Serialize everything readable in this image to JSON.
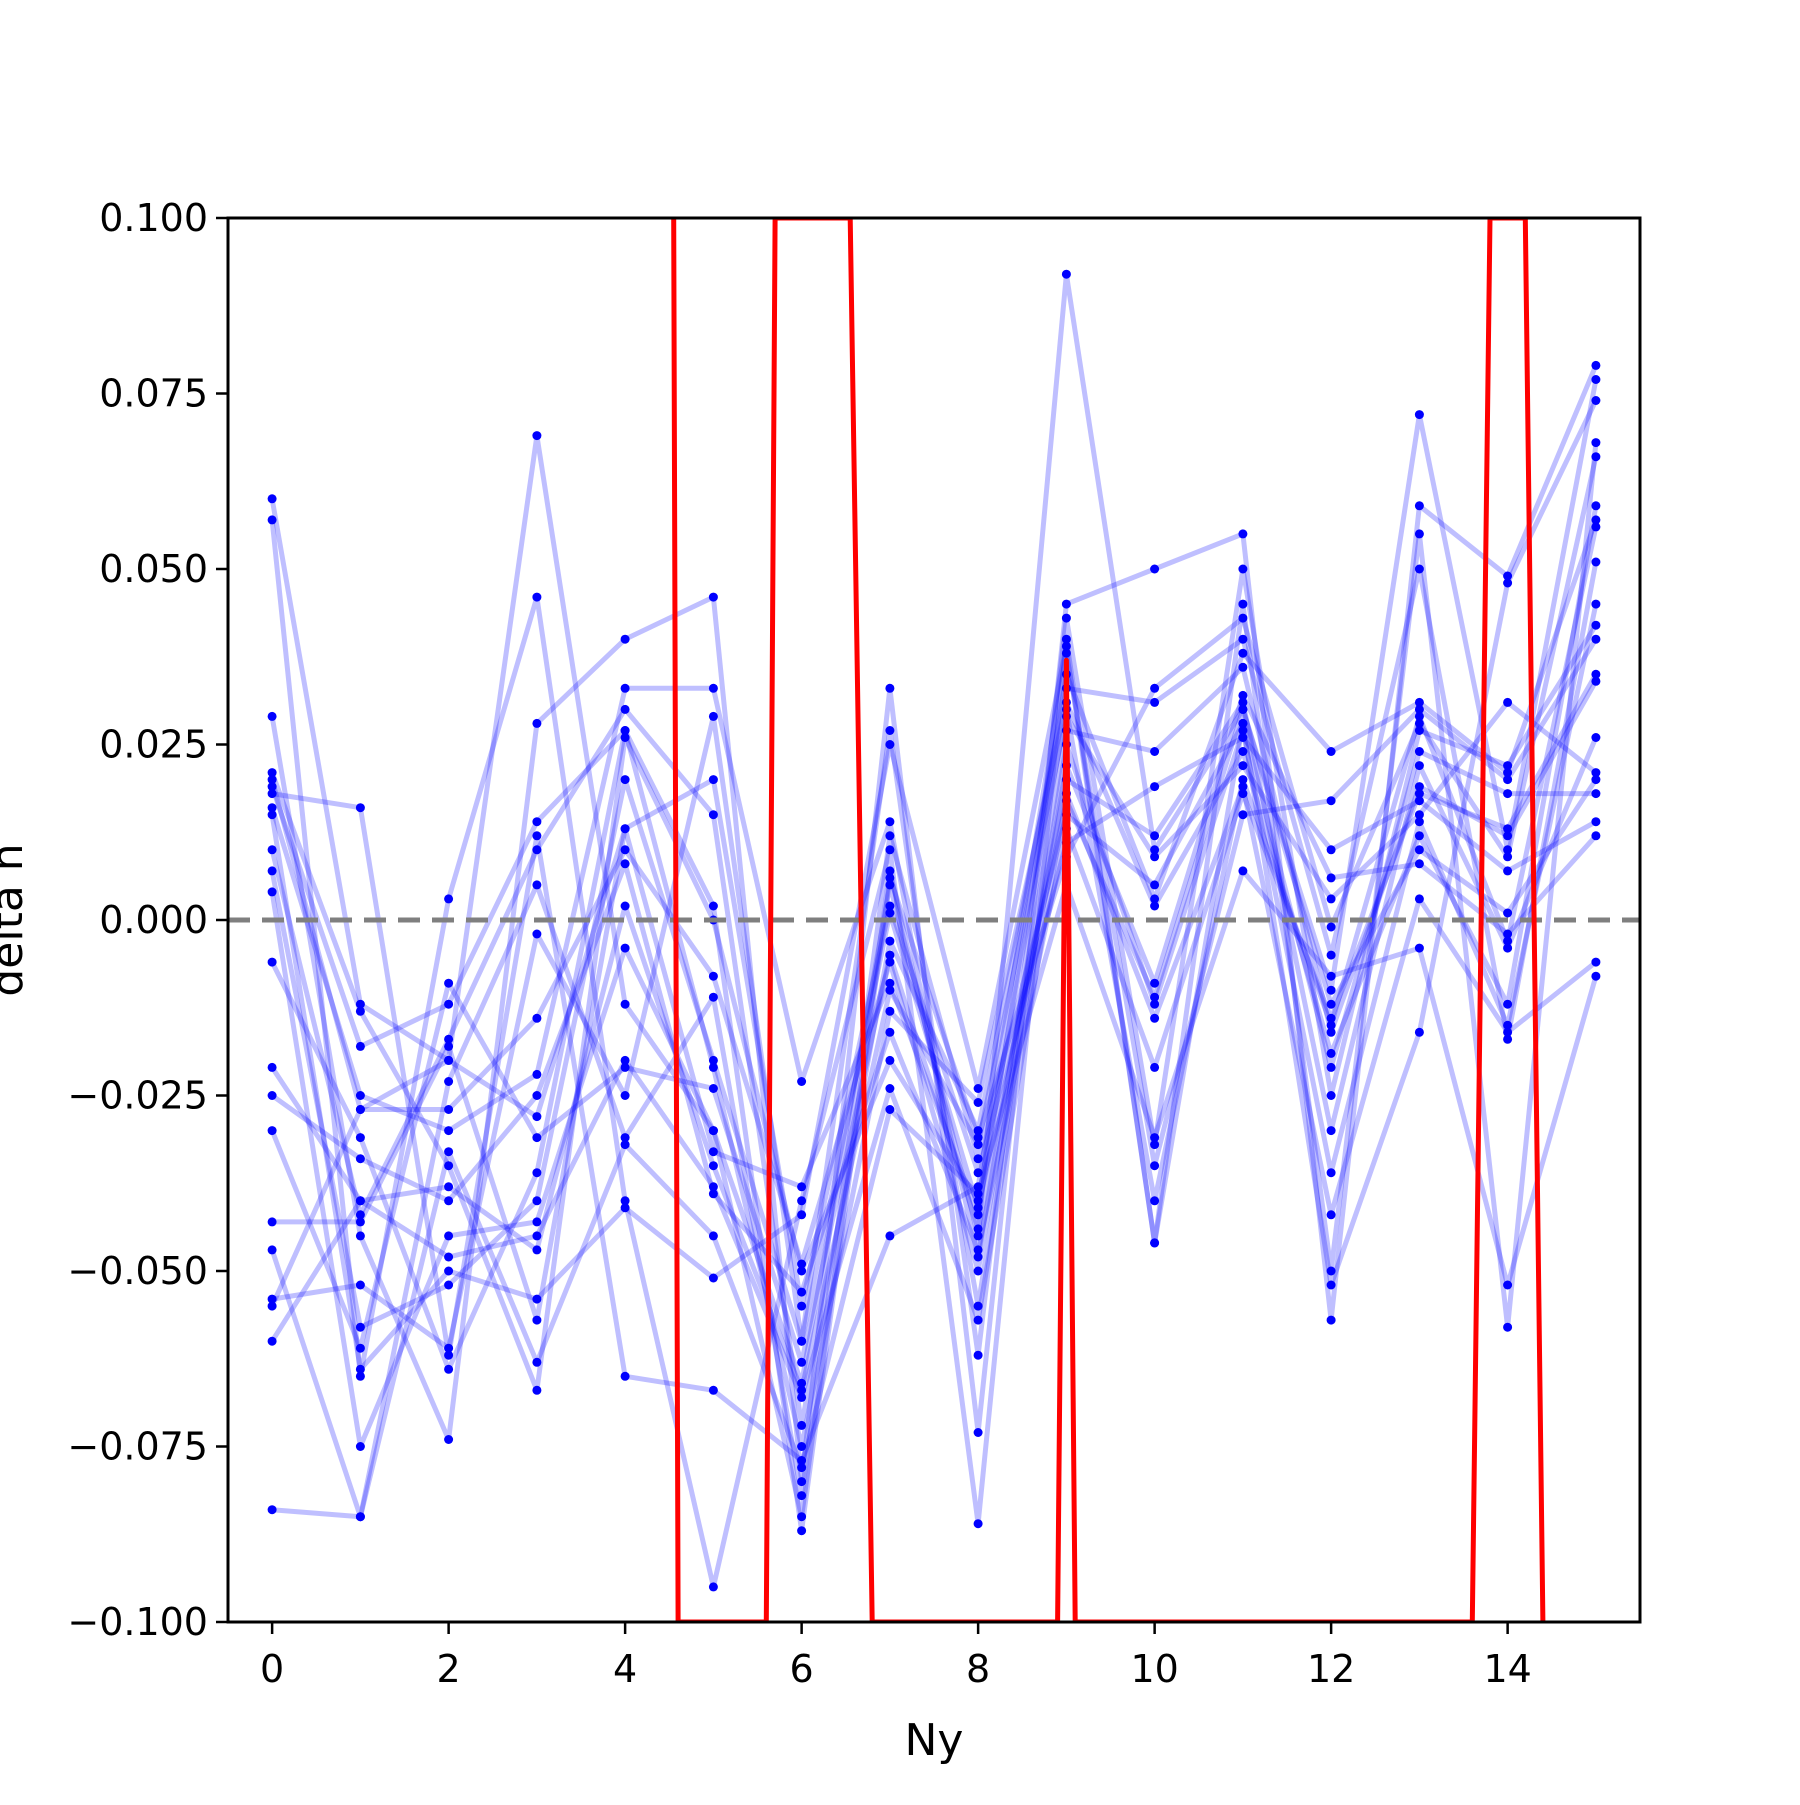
{
  "chart_data": {
    "type": "line",
    "xlabel": "Ny",
    "ylabel": "delta n",
    "xlim": [
      -0.5,
      15.5
    ],
    "ylim": [
      -0.1,
      0.1
    ],
    "x_ticks": [
      0,
      2,
      4,
      6,
      8,
      10,
      12,
      14
    ],
    "x_tick_labels": [
      "0",
      "2",
      "4",
      "6",
      "8",
      "10",
      "12",
      "14"
    ],
    "y_ticks": [
      0.1,
      0.075,
      0.05,
      0.025,
      0.0,
      -0.025,
      -0.05,
      -0.075,
      -0.1
    ],
    "y_tick_labels": [
      "0.100",
      "0.075",
      "0.050",
      "0.025",
      "0.000",
      "−0.025",
      "−0.050",
      "−0.075",
      "−0.100"
    ],
    "grid": false,
    "reference_line": {
      "y": 0.0,
      "style": "dashed",
      "color": "#7f7f7f"
    },
    "colors": {
      "series": "#0000ff",
      "series_alpha": 0.25,
      "highlight": "#ff0000"
    },
    "x": [
      0,
      1,
      2,
      3,
      4,
      5,
      6,
      7,
      8,
      9,
      10,
      11,
      12,
      13,
      14,
      15
    ],
    "series": [
      {
        "values": [
          0.06,
          -0.012,
          -0.02,
          0.069,
          -0.012,
          -0.03,
          -0.066,
          0.005,
          -0.045,
          0.092,
          0.01,
          0.03,
          -0.01,
          0.072,
          0.01,
          0.077
        ]
      },
      {
        "values": [
          0.057,
          -0.065,
          0.003,
          0.046,
          -0.04,
          -0.095,
          -0.04,
          0.01,
          -0.086,
          0.04,
          -0.046,
          0.045,
          -0.05,
          0.055,
          -0.058,
          0.068
        ]
      },
      {
        "values": [
          0.029,
          -0.045,
          -0.074,
          0.028,
          0.04,
          0.046,
          -0.08,
          0.033,
          -0.073,
          0.045,
          0.05,
          0.055,
          -0.057,
          0.059,
          0.049,
          0.079
        ]
      },
      {
        "values": [
          0.021,
          -0.013,
          -0.035,
          -0.067,
          0.026,
          0.0,
          -0.05,
          -0.02,
          -0.04,
          0.03,
          -0.04,
          0.02,
          -0.015,
          0.029,
          -0.003,
          0.056
        ]
      },
      {
        "values": [
          0.018,
          0.016,
          -0.062,
          0.012,
          -0.065,
          -0.067,
          -0.077,
          -0.045,
          -0.038,
          0.038,
          -0.035,
          0.015,
          0.017,
          0.03,
          0.02,
          0.04
        ]
      },
      {
        "values": [
          0.016,
          -0.025,
          -0.03,
          -0.022,
          0.033,
          0.033,
          -0.023,
          0.014,
          -0.055,
          0.025,
          -0.012,
          0.027,
          -0.036,
          0.014,
          -0.015,
          0.045
        ]
      },
      {
        "values": [
          0.01,
          -0.042,
          -0.017,
          0.01,
          0.03,
          0.015,
          -0.072,
          -0.003,
          -0.03,
          0.033,
          0.031,
          0.04,
          -0.005,
          0.05,
          -0.017,
          0.051
        ]
      },
      {
        "values": [
          0.007,
          -0.058,
          -0.052,
          -0.04,
          0.02,
          -0.02,
          -0.06,
          0.027,
          -0.062,
          0.043,
          -0.032,
          0.05,
          -0.025,
          0.027,
          0.022,
          0.042
        ]
      },
      {
        "values": [
          0.004,
          -0.075,
          -0.045,
          -0.043,
          -0.004,
          -0.03,
          -0.085,
          0.007,
          -0.048,
          0.027,
          0.024,
          0.036,
          -0.016,
          0.019,
          0.012,
          0.034
        ]
      },
      {
        "values": [
          -0.006,
          -0.031,
          -0.064,
          -0.036,
          0.027,
          -0.021,
          -0.075,
          -0.013,
          -0.026,
          0.031,
          0.002,
          0.024,
          -0.019,
          0.012,
          -0.012,
          0.059
        ]
      },
      {
        "values": [
          -0.021,
          -0.04,
          -0.038,
          -0.047,
          0.002,
          -0.035,
          -0.067,
          -0.01,
          -0.032,
          0.029,
          0.009,
          0.022,
          0.003,
          0.015,
          0.031,
          0.021
        ]
      },
      {
        "values": [
          -0.025,
          -0.034,
          -0.04,
          -0.025,
          0.008,
          -0.039,
          -0.053,
          -0.016,
          -0.047,
          0.013,
          -0.021,
          0.018,
          -0.014,
          0.018,
          0.013,
          0.035
        ]
      },
      {
        "values": [
          -0.03,
          -0.061,
          -0.009,
          -0.031,
          -0.021,
          -0.024,
          -0.063,
          -0.005,
          -0.044,
          0.02,
          0.012,
          0.031,
          -0.03,
          0.022,
          -0.004,
          0.026
        ]
      },
      {
        "values": [
          -0.043,
          -0.043,
          -0.018,
          -0.057,
          0.013,
          0.02,
          -0.055,
          0.002,
          -0.036,
          0.011,
          0.019,
          0.026,
          0.01,
          0.017,
          0.007,
          0.014
        ]
      },
      {
        "values": [
          -0.047,
          -0.085,
          -0.023,
          0.005,
          -0.031,
          -0.011,
          -0.082,
          0.012,
          -0.034,
          0.015,
          0.005,
          0.028,
          -0.021,
          0.024,
          0.018,
          0.018
        ]
      },
      {
        "values": [
          -0.054,
          -0.052,
          -0.061,
          -0.002,
          -0.025,
          0.029,
          -0.06,
          0.001,
          -0.041,
          0.017,
          -0.011,
          0.03,
          -0.012,
          0.01,
          0.001,
          0.02
        ]
      },
      {
        "values": [
          -0.055,
          -0.027,
          -0.027,
          -0.014,
          0.01,
          -0.008,
          -0.049,
          -0.006,
          -0.05,
          0.022,
          -0.009,
          0.032,
          0.006,
          0.008,
          -0.002,
          0.012
        ]
      },
      {
        "values": [
          -0.06,
          -0.04,
          -0.048,
          -0.045,
          -0.02,
          -0.038,
          -0.068,
          -0.024,
          -0.057,
          0.018,
          -0.014,
          0.019,
          -0.042,
          0.003,
          -0.016,
          -0.006
        ]
      },
      {
        "values": [
          -0.084,
          -0.085,
          -0.033,
          -0.063,
          -0.032,
          -0.045,
          -0.078,
          -0.027,
          -0.039,
          0.005,
          -0.031,
          0.007,
          -0.008,
          -0.004,
          -0.052,
          -0.008
        ]
      },
      {
        "values": [
          0.019,
          -0.018,
          -0.012,
          0.014,
          0.027,
          0.002,
          -0.087,
          0.006,
          -0.031,
          0.009,
          0.033,
          0.043,
          -0.001,
          0.028,
          0.009,
          0.066
        ]
      },
      {
        "values": [
          0.015,
          -0.064,
          -0.05,
          -0.054,
          -0.041,
          -0.051,
          -0.042,
          0.025,
          -0.024,
          0.039,
          -0.046,
          0.028,
          -0.052,
          -0.016,
          0.048,
          0.074
        ]
      },
      {
        "values": [
          0.02,
          -0.027,
          -0.02,
          -0.028,
          0.013,
          -0.033,
          -0.038,
          -0.009,
          -0.042,
          0.035,
          0.003,
          0.038,
          0.024,
          0.031,
          0.021,
          0.057
        ]
      }
    ],
    "highlight_series": {
      "color": "#ff0000",
      "x": [
        4.55,
        4.6,
        5.6,
        5.7,
        6.55,
        6.8,
        8.9,
        9.0,
        9.1,
        13.6,
        13.8,
        14.2,
        14.4
      ],
      "values": [
        0.1,
        -0.1,
        -0.1,
        0.1,
        0.1,
        -0.1,
        -0.1,
        0.037,
        -0.1,
        -0.1,
        0.1,
        0.1,
        -0.1
      ]
    }
  }
}
